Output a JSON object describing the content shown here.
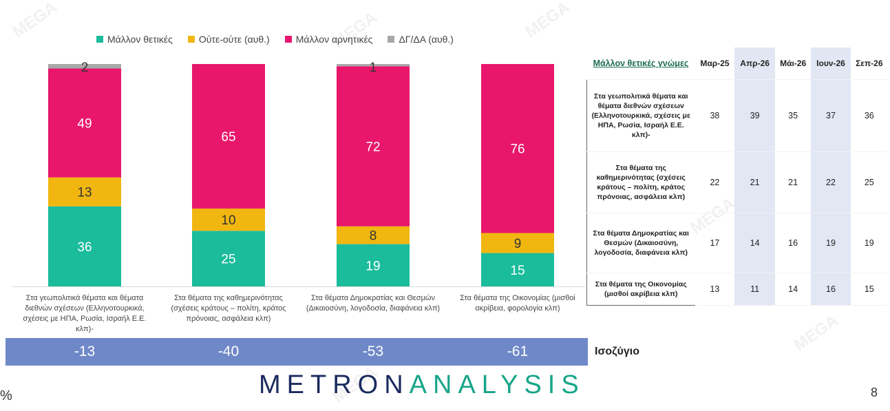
{
  "legend": [
    {
      "label": "Μάλλον θετικές",
      "color": "#1abc9c"
    },
    {
      "label": "Ούτε-ούτε  (αυθ.)",
      "color": "#f1b710"
    },
    {
      "label": "Μάλλον αρνητικές",
      "color": "#e8176b"
    },
    {
      "label": "ΔΓ/ΔΑ (αυθ.)",
      "color": "#a8a8a8"
    }
  ],
  "chart_data": {
    "type": "bar",
    "stacked": true,
    "categories": [
      "Στα γεωπολιτικά θέματα και θέματα διεθνών σχέσεων (Ελληνοτουρκικά, σχέσεις με ΗΠΑ, Ρωσία, Ισραήλ Ε.Ε. κλπ)-",
      "Στα θέματα της καθημερινότητας (σχέσεις κράτους – πολίτη, κράτος πρόνοιας, ασφάλεια κλπ)",
      "Στα θέματα Δημοκρατίας και Θεσμών (Δικαιοσύνη, λογοδοσία, διαφάνεια κλπ)",
      "Στα θέματα της Οικονομίας (μισθοί ακρίβεια, φορολογία κλπ)"
    ],
    "series": [
      {
        "name": "Μάλλον θετικές",
        "values": [
          36,
          25,
          19,
          15
        ]
      },
      {
        "name": "Ούτε-ούτε  (αυθ.)",
        "values": [
          13,
          10,
          8,
          9
        ]
      },
      {
        "name": "Μάλλον αρνητικές",
        "values": [
          49,
          65,
          72,
          76
        ]
      },
      {
        "name": "ΔΓ/ΔΑ (αυθ.)",
        "values": [
          2,
          null,
          1,
          null
        ]
      }
    ],
    "ylim": [
      0,
      100
    ]
  },
  "balance": {
    "title": "Ισοζύγιο",
    "values": [
      "-13",
      "-40",
      "-53",
      "-61"
    ]
  },
  "table": {
    "title": "Μάλλον θετικές γνώμες",
    "columns": [
      "Μαρ-25",
      "Απρ-26",
      "Μάι-26",
      "Ιουν-26",
      "Σεπ-26"
    ],
    "rows": [
      {
        "label": "Στα γεωπολιτικά θέματα και θέματα διεθνών σχέσεων (Ελληνοτουρκικά, σχέσεις με ΗΠΑ, Ρωσία, Ισραήλ Ε.Ε. κλπ)-",
        "values": [
          "38",
          "39",
          "35",
          "37",
          "36"
        ]
      },
      {
        "label": "Στα θέματα της καθημερινότητας (σχέσεις κράτους – πολίτη, κράτος πρόνοιας, ασφάλεια κλπ)",
        "values": [
          "22",
          "21",
          "21",
          "22",
          "25"
        ]
      },
      {
        "label": "Στα θέματα Δημοκρατίας και Θεσμών (Δικαιοσύνη, λογοδοσία, διαφάνεια κλπ)",
        "values": [
          "17",
          "14",
          "16",
          "19",
          "19"
        ]
      },
      {
        "label": "Στα θέματα της Οικονομίας (μισθοί ακρίβεια κλπ)",
        "values": [
          "13",
          "11",
          "14",
          "16",
          "15"
        ]
      }
    ]
  },
  "logo": {
    "part1": "METRON",
    "part2": "ANALYSIS"
  },
  "page_number": "8",
  "percent_sign": "%",
  "watermark": "MEGA"
}
